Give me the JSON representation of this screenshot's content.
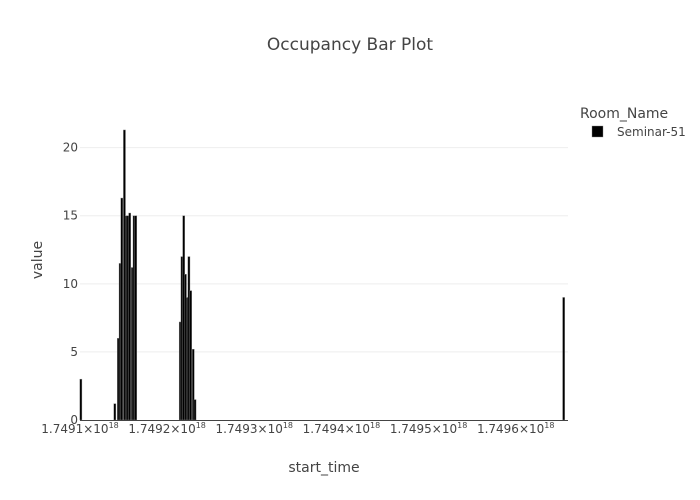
{
  "chart_data": {
    "type": "bar",
    "title": "Occupancy Bar Plot",
    "xlabel": "start_time",
    "ylabel": "value",
    "x_tick_labels": [
      {
        "mantissa": "1.7491",
        "exponent": "18",
        "value": 1.7491
      },
      {
        "mantissa": "1.7492",
        "exponent": "18",
        "value": 1.7492
      },
      {
        "mantissa": "1.7493",
        "exponent": "18",
        "value": 1.7493
      },
      {
        "mantissa": "1.7494",
        "exponent": "18",
        "value": 1.7494
      },
      {
        "mantissa": "1.7495",
        "exponent": "18",
        "value": 1.7495
      },
      {
        "mantissa": "1.7496",
        "exponent": "18",
        "value": 1.7496
      }
    ],
    "x_scale_note": "×10^18",
    "xlim": [
      1.7491,
      1.74966
    ],
    "y_ticks": [
      0,
      5,
      10,
      15,
      20
    ],
    "ylim": [
      0,
      23.5
    ],
    "grid": true,
    "legend": {
      "title": "Room_Name",
      "placement": "top-right"
    },
    "series": [
      {
        "name": "Seminar-51",
        "color": "#000000",
        "bar_width": 2.4e-06,
        "x": [
          1.749101,
          1.74914,
          1.749144,
          1.749146,
          1.749148,
          1.749151,
          1.749153,
          1.749155,
          1.749157,
          1.74916,
          1.749162,
          1.749164,
          1.749215,
          1.749217,
          1.749219,
          1.749221,
          1.749223,
          1.749225,
          1.749227,
          1.74923,
          1.749232,
          1.749234,
          1.749655
        ],
        "values": [
          3.0,
          1.2,
          6.0,
          11.5,
          16.3,
          21.3,
          15.0,
          15.0,
          15.2,
          11.2,
          15.0,
          15.0,
          7.2,
          12.0,
          15.0,
          10.7,
          9.0,
          12.0,
          9.5,
          5.2,
          1.5,
          0,
          9.0
        ]
      }
    ]
  }
}
